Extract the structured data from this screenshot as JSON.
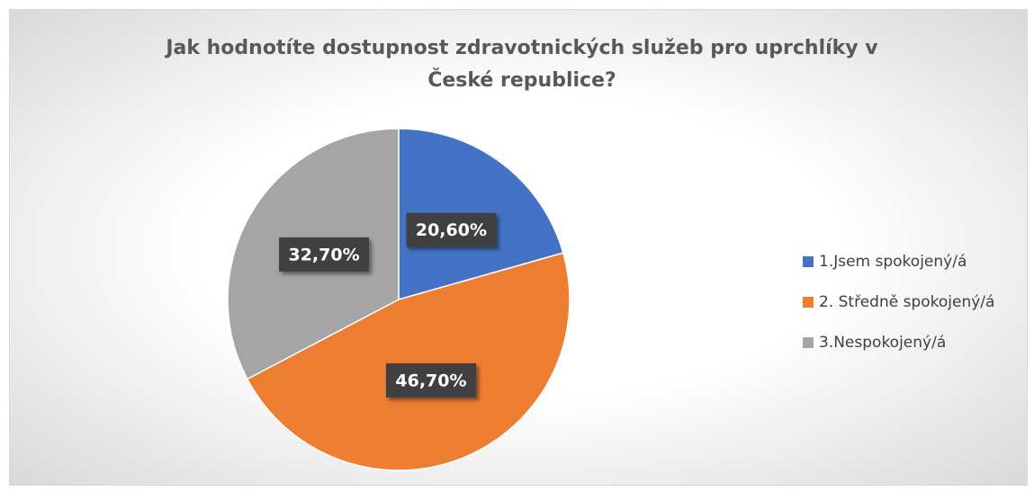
{
  "chart_data": {
    "type": "pie",
    "title": "Jak hodnotíte dostupnost zdravotnických služeb pro uprchlíky v České republice?",
    "categories": [
      "1.Jsem spokojený/á",
      "2. Středně spokojený/á",
      "3.Nespokojený/á"
    ],
    "values": [
      20.6,
      46.7,
      32.7
    ],
    "value_labels": [
      "20,60%",
      "46,70%",
      "32,70%"
    ],
    "colors": [
      "#4472c4",
      "#ed7d31",
      "#a5a5a5"
    ],
    "legend": "right"
  }
}
